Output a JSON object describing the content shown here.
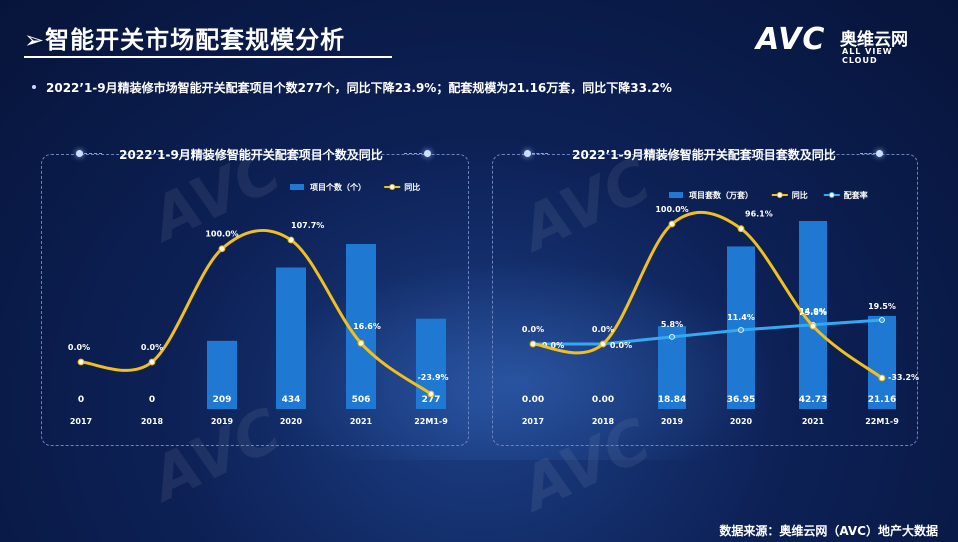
{
  "header": {
    "title": "➢智能开关市场配套规模分析",
    "logo_mark": "AVC",
    "logo_cn": "奥维云网",
    "logo_en": "ALL VIEW CLOUD"
  },
  "summary": "2022’1-9月精装修市场智能开关配套项目个数277个，同比下降23.9%；配套规模为21.16万套，同比下降33.2%",
  "footer": "数据来源：奥维云网（AVC）地产大数据",
  "colors": {
    "bar": "#1f78d1",
    "yoy": "#f2c01e",
    "rate": "#34a8f0"
  },
  "chart_data": [
    {
      "type": "bar",
      "title": "2022’1-9月精装修智能开关配套项目个数及同比",
      "categories": [
        "2017",
        "2018",
        "2019",
        "2020",
        "2021",
        "22M1-9"
      ],
      "series": [
        {
          "name": "项目个数（个）",
          "type": "bar",
          "values": [
            0,
            0,
            209,
            434,
            506,
            277
          ],
          "labels": [
            "0",
            "0",
            "209",
            "434",
            "506",
            "277"
          ]
        },
        {
          "name": "同比",
          "type": "line",
          "values": [
            0.0,
            0.0,
            100.0,
            107.7,
            16.6,
            -23.9
          ],
          "labels": [
            "0.0%",
            "0.0%",
            "100.0%",
            "107.7%",
            "16.6%",
            "-23.9%"
          ]
        }
      ],
      "legend": "top-right"
    },
    {
      "type": "bar",
      "title": "2022’1-9月精装修智能开关配套项目套数及同比",
      "categories": [
        "2017",
        "2018",
        "2019",
        "2020",
        "2021",
        "22M1-9"
      ],
      "series": [
        {
          "name": "项目套数（万套）",
          "type": "bar",
          "values": [
            0.0,
            0.0,
            18.84,
            36.95,
            42.73,
            21.16
          ],
          "labels": [
            "0.00",
            "0.00",
            "18.84",
            "36.95",
            "42.73",
            "21.16"
          ]
        },
        {
          "name": "同比",
          "type": "line",
          "values": [
            0.0,
            0.0,
            100.0,
            96.1,
            14.9,
            -33.2
          ],
          "labels": [
            "0.0%",
            "0.0%",
            "100.0%",
            "96.1%",
            "14.9%",
            "-33.2%"
          ]
        },
        {
          "name": "配套率",
          "type": "line",
          "values": [
            0.0,
            0.0,
            5.8,
            11.4,
            15.6,
            19.5
          ],
          "labels": [
            "0.0%",
            "0.0%",
            "5.8%",
            "11.4%",
            "15.6%",
            "19.5%"
          ]
        }
      ],
      "legend": "top-right"
    }
  ]
}
